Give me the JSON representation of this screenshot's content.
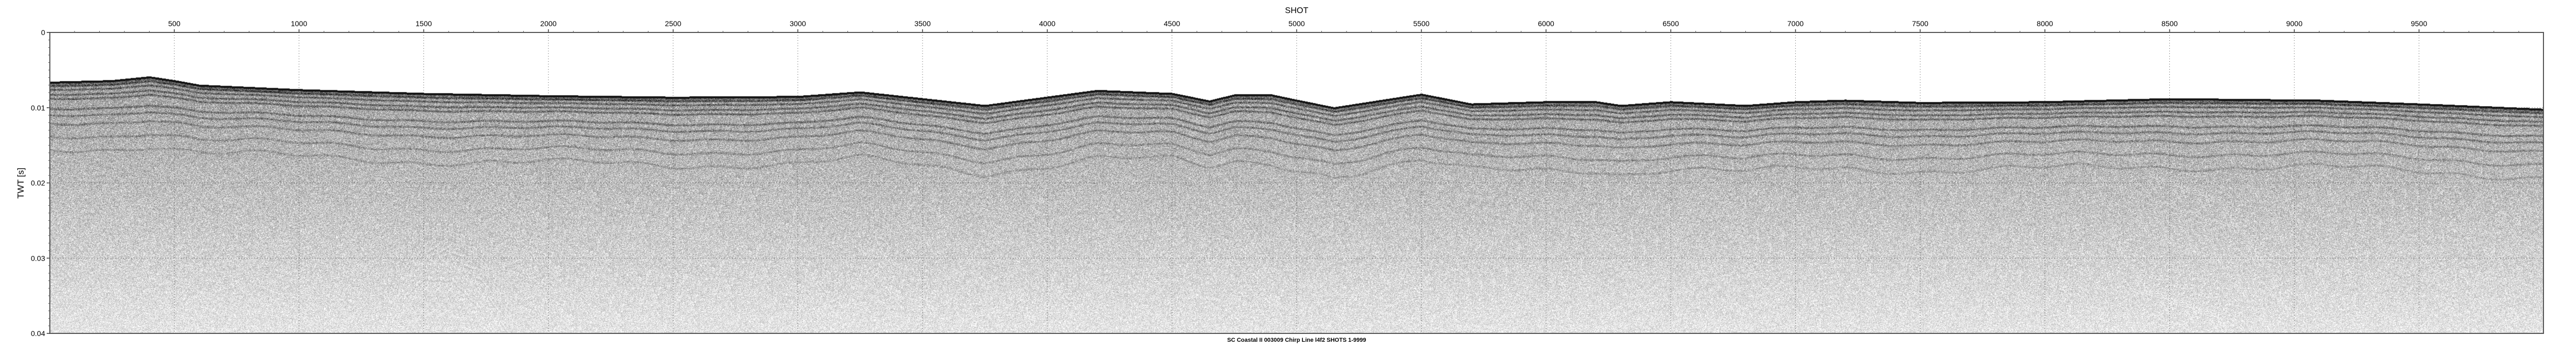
{
  "chart_data": {
    "type": "heatmap",
    "subtype": "seismic-section",
    "title": "",
    "xlabel": "SHOT",
    "ylabel": "TWT [s]",
    "caption": "SC Coastal II 003009 Chirp Line l4f2 SHOTS 1-9999",
    "xlim": [
      1,
      9999
    ],
    "ylim": [
      0,
      0.04
    ],
    "y_inverted": true,
    "x_axis_position": "top",
    "xticks": [
      500,
      1000,
      1500,
      2000,
      2500,
      3000,
      3500,
      4000,
      4500,
      5000,
      5500,
      6000,
      6500,
      7000,
      7500,
      8000,
      8500,
      9000,
      9500
    ],
    "xtick_labels": [
      "500",
      "1000",
      "1500",
      "2000",
      "2500",
      "3000",
      "3500",
      "4000",
      "4500",
      "5000",
      "5500",
      "6000",
      "6500",
      "7000",
      "7500",
      "8000",
      "8500",
      "9000",
      "9500"
    ],
    "yticks": [
      0,
      0.01,
      0.02,
      0.03,
      0.04
    ],
    "ytick_labels": [
      "0",
      "0.01",
      "0.02",
      "0.03",
      "0.04"
    ],
    "grid": true,
    "grid_style": "dotted",
    "colormap": "grayscale",
    "seafloor_reflector": {
      "shot": [
        1,
        250,
        400,
        500,
        600,
        1000,
        1500,
        2000,
        2500,
        3000,
        3250,
        3500,
        3750,
        4200,
        4500,
        4650,
        4750,
        4900,
        5000,
        5150,
        5500,
        5700,
        6000,
        6200,
        6300,
        6500,
        6800,
        7000,
        7200,
        7500,
        8000,
        8500,
        9100,
        9500,
        9999
      ],
      "twt": [
        0.0065,
        0.0063,
        0.0058,
        0.0063,
        0.0069,
        0.0075,
        0.008,
        0.0083,
        0.0085,
        0.0084,
        0.0078,
        0.0087,
        0.0096,
        0.0076,
        0.008,
        0.009,
        0.0082,
        0.0082,
        0.0089,
        0.0099,
        0.0081,
        0.0094,
        0.0091,
        0.0091,
        0.0096,
        0.0091,
        0.0096,
        0.0091,
        0.0089,
        0.0092,
        0.0091,
        0.0087,
        0.0089,
        0.0094,
        0.0101
      ]
    }
  }
}
